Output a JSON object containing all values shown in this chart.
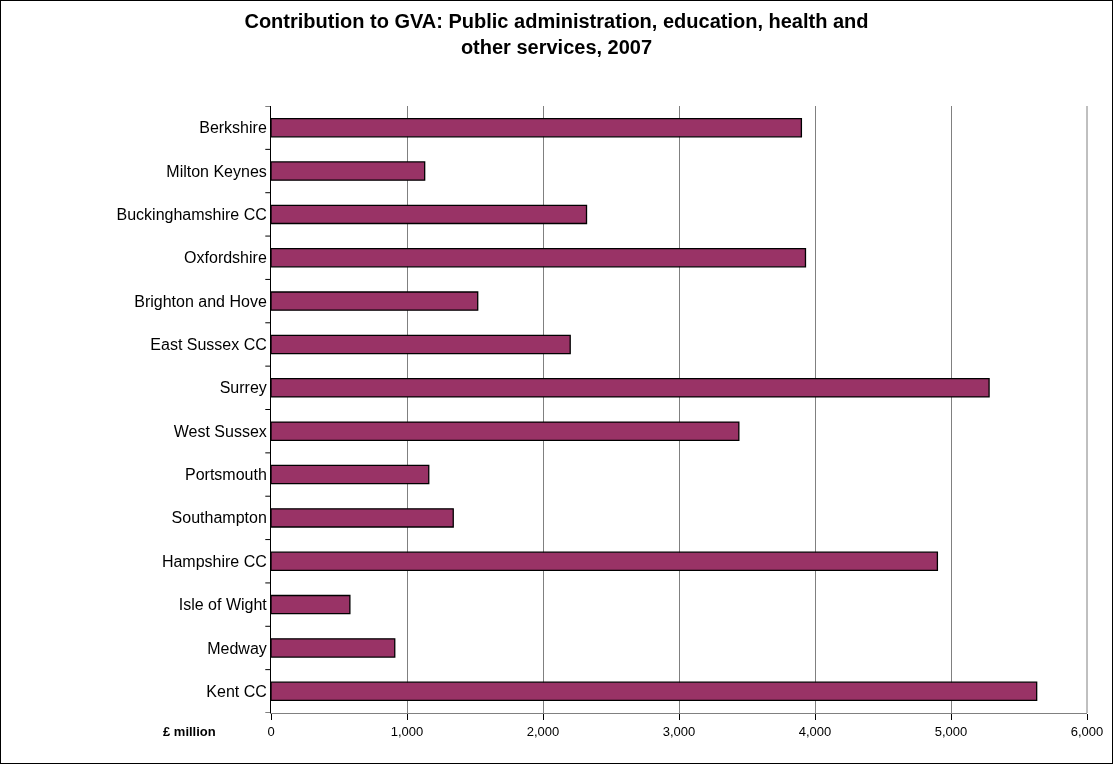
{
  "chart_data": {
    "type": "bar",
    "orientation": "horizontal",
    "title": "Contribution to GVA: Public administration, education, health and other services, 2007",
    "categories": [
      "Berkshire",
      "Milton Keynes",
      "Buckinghamshire CC",
      "Oxfordshire",
      "Brighton and Hove",
      "East Sussex CC",
      "Surrey",
      "West Sussex",
      "Portsmouth",
      "Southampton",
      "Hampshire CC",
      "Isle of Wight",
      "Medway",
      "Kent CC"
    ],
    "values": [
      3900,
      1130,
      2320,
      3930,
      1520,
      2200,
      5280,
      3440,
      1160,
      1340,
      4900,
      580,
      910,
      5630
    ],
    "color": "#993366",
    "xlim": [
      0,
      6000
    ],
    "xticks": [
      {
        "value": 0,
        "label": "0"
      },
      {
        "value": 1000,
        "label": "1,000"
      },
      {
        "value": 2000,
        "label": "2,000"
      },
      {
        "value": 3000,
        "label": "3,000"
      },
      {
        "value": 4000,
        "label": "4,000"
      },
      {
        "value": 5000,
        "label": "5,000"
      },
      {
        "value": 6000,
        "label": "6,000"
      }
    ],
    "grid": "x",
    "annotations": [
      "£ million"
    ]
  }
}
